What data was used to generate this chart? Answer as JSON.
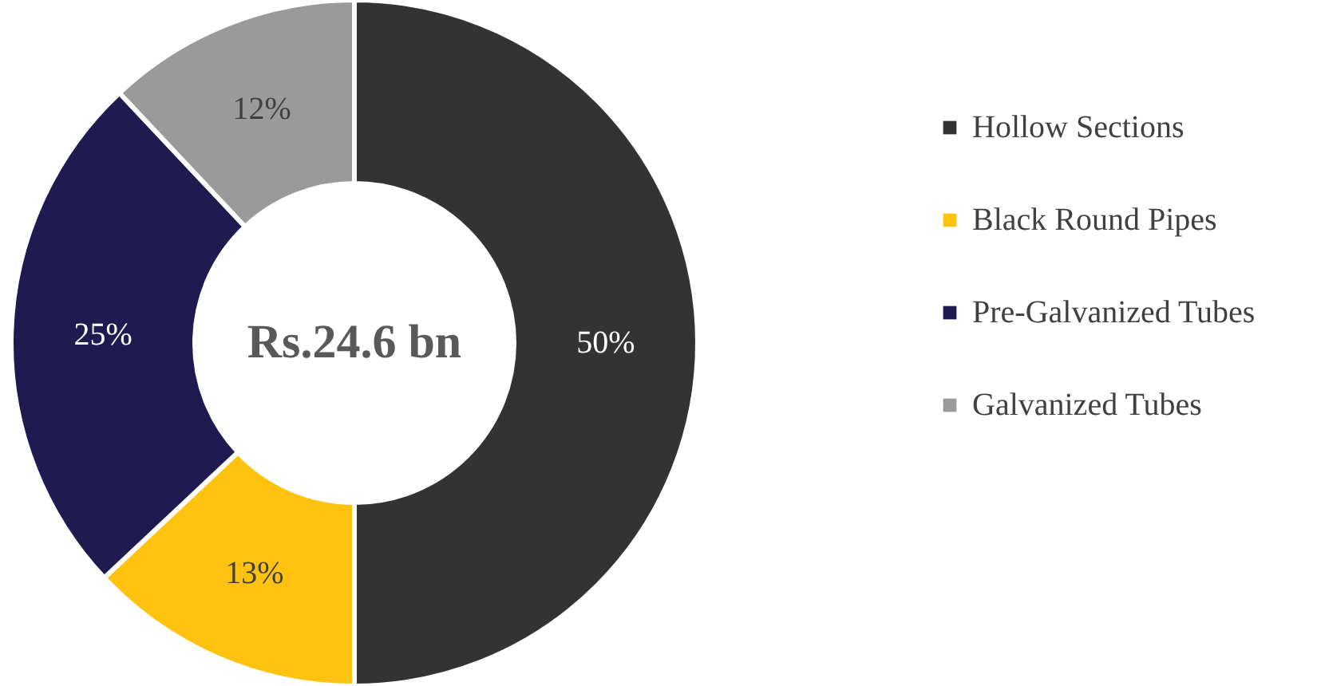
{
  "chart_data": {
    "type": "donut",
    "categories": [
      "Hollow Sections",
      "Black Round Pipes",
      "Pre-Galvanized Tubes",
      "Galvanized Tubes"
    ],
    "values": [
      50,
      13,
      25,
      12
    ],
    "colors": [
      "#333333",
      "#ffc20e",
      "#1f1a4f",
      "#9a9a9a"
    ],
    "value_labels": [
      "50%",
      "13%",
      "25%",
      "12%"
    ],
    "annotations": [
      "Rs.24.6 bn"
    ],
    "legend": "right"
  }
}
